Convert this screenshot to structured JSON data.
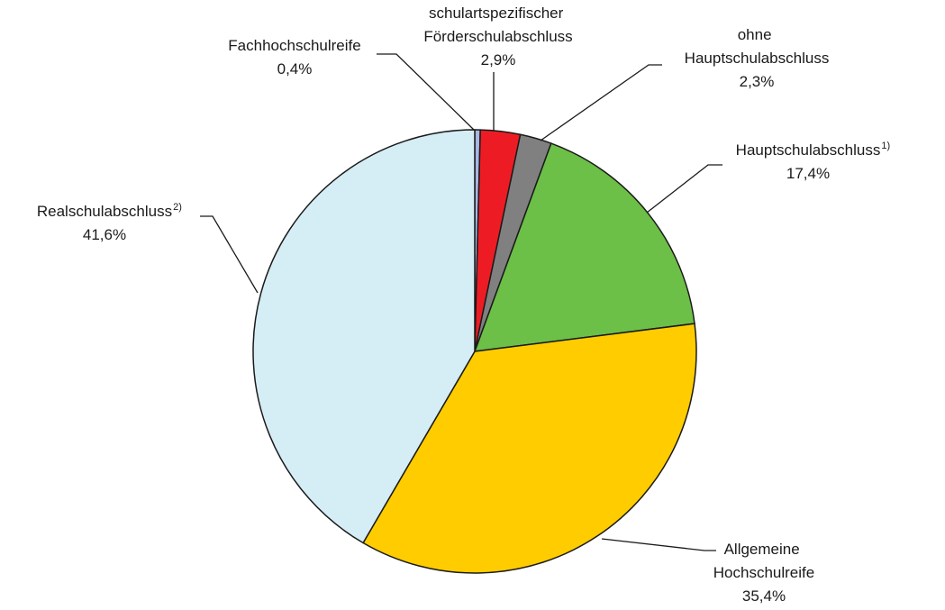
{
  "chart_data": {
    "type": "pie",
    "categories": [
      "Fachhochschulreife",
      "schulartspezifischer Förderschulabschluss",
      "ohne Hauptschulabschluss",
      "Hauptschulabschluss",
      "Allgemeine Hochschulreife",
      "Realschulabschluss"
    ],
    "footnotes": [
      null,
      null,
      null,
      "1)",
      null,
      "2)"
    ],
    "values": [
      0.4,
      2.9,
      2.3,
      17.4,
      35.4,
      41.6
    ],
    "value_labels": [
      "0,4%",
      "2,9%",
      "2,3%",
      "17,4%",
      "35,4%",
      "41,6%"
    ],
    "colors": [
      "#a9b6e2",
      "#ed1c24",
      "#808080",
      "#6cbf47",
      "#ffcc00",
      "#d5edf5"
    ]
  }
}
